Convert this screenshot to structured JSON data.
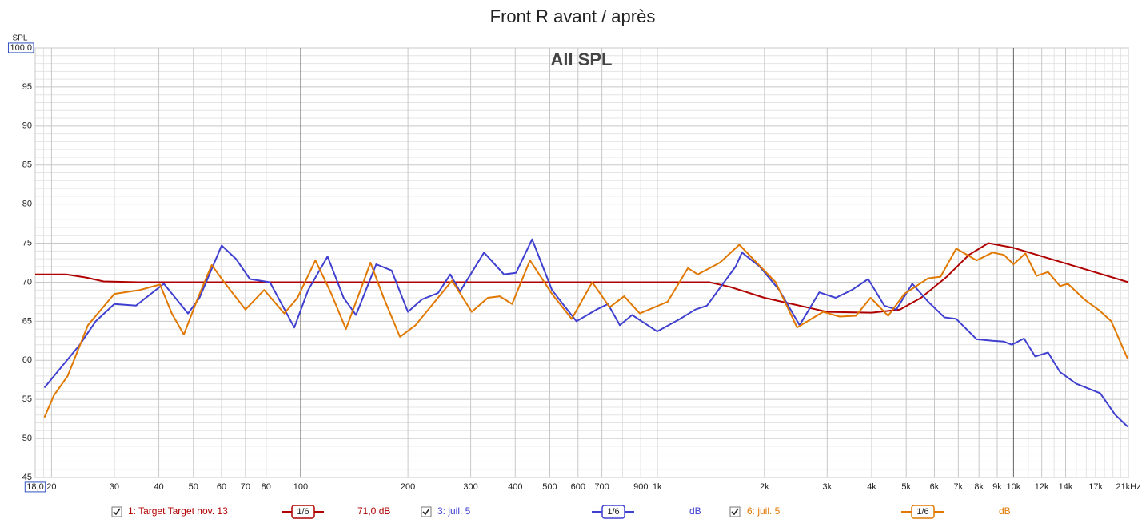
{
  "chart_data": {
    "type": "line",
    "title": "Front R avant / après",
    "annotation": "All SPL",
    "y_label": "SPL",
    "log_x": true,
    "grid": true,
    "xlim": [
      18,
      21000
    ],
    "ylim": [
      45,
      100
    ],
    "xticks": [
      {
        "value": 18,
        "label": "18,0"
      },
      20,
      30,
      40,
      50,
      60,
      70,
      80,
      100,
      200,
      300,
      400,
      500,
      600,
      700,
      900,
      {
        "value": 1000,
        "label": "1k"
      },
      {
        "value": 2000,
        "label": "2k"
      },
      {
        "value": 3000,
        "label": "3k"
      },
      {
        "value": 4000,
        "label": "4k"
      },
      {
        "value": 5000,
        "label": "5k"
      },
      {
        "value": 6000,
        "label": "6k"
      },
      {
        "value": 7000,
        "label": "7k"
      },
      {
        "value": 8000,
        "label": "8k"
      },
      {
        "value": 9000,
        "label": "9k"
      },
      {
        "value": 10000,
        "label": "10k"
      },
      {
        "value": 12000,
        "label": "12k"
      },
      {
        "value": 14000,
        "label": "14k"
      },
      {
        "value": 17000,
        "label": "17k"
      },
      {
        "value": 21000,
        "label": "21kHz"
      }
    ],
    "x_minor_grid": [
      19,
      800,
      11000,
      13000,
      15000,
      16000,
      18000,
      19000,
      20000
    ],
    "yticks": [
      45,
      50,
      55,
      60,
      65,
      70,
      75,
      80,
      85,
      90,
      95,
      {
        "value": 100,
        "label": "100,0"
      }
    ],
    "y_minor_grid": [
      46,
      47,
      48,
      49,
      51,
      52,
      53,
      54,
      56,
      57,
      58,
      59,
      61,
      62,
      63,
      64,
      66,
      67,
      68,
      69,
      71,
      72,
      73,
      74,
      76,
      77,
      78,
      79,
      81,
      82,
      83,
      84,
      86,
      87,
      88,
      89,
      91,
      92,
      93,
      94,
      96,
      97,
      98,
      99
    ],
    "series": [
      {
        "name": "1: Target Target nov. 13",
        "color": "#b00000",
        "smoothing_label": "1/6",
        "offset_label": "71,0 dB",
        "x": [
          18,
          22,
          25,
          28,
          35,
          100,
          1000,
          1400,
          1600,
          2000,
          3000,
          4000,
          4800,
          5500,
          6500,
          7500,
          8500,
          10000,
          15000,
          21000
        ],
        "values": [
          71,
          71,
          70.6,
          70.1,
          70,
          70,
          70,
          70,
          69.4,
          68,
          66.2,
          66.1,
          66.5,
          68,
          70.7,
          73.5,
          75,
          74.4,
          72,
          70
        ]
      },
      {
        "name": "3: juil. 5",
        "color": "#4040d0",
        "smoothing_label": "1/6",
        "offset_label": "dB",
        "x": [
          19.1,
          24,
          26.6,
          30,
          34.5,
          41.3,
          48.3,
          52,
          60,
          65.8,
          72,
          82,
          96,
          105,
          119,
          132,
          143,
          163,
          180,
          200,
          219,
          243,
          263,
          280,
          327,
          372,
          402,
          446,
          507,
          542,
          594,
          676,
          728,
          786,
          851,
          1000,
          1160,
          1280,
          1380,
          1660,
          1730,
          1940,
          2200,
          2510,
          2850,
          3170,
          3520,
          3910,
          4340,
          4690,
          5200,
          5760,
          6400,
          6910,
          7880,
          8730,
          9400,
          9890,
          10700,
          11500,
          12500,
          13500,
          15000,
          17500,
          19300,
          20900
        ],
        "values": [
          56.5,
          62,
          65,
          67.2,
          67,
          69.8,
          66,
          68,
          74.7,
          73,
          70.4,
          70,
          64.2,
          69,
          73.3,
          68,
          65.8,
          72.3,
          71.5,
          66.2,
          67.8,
          68.6,
          71,
          68.8,
          73.8,
          71,
          71.2,
          75.5,
          69,
          67.3,
          65,
          66.5,
          67.2,
          64.5,
          65.8,
          63.7,
          65.3,
          66.5,
          67,
          72,
          73.8,
          72,
          69,
          64.5,
          68.7,
          68,
          69,
          70.4,
          67,
          66.5,
          69.8,
          67.5,
          65.5,
          65.3,
          62.7,
          62.5,
          62.4,
          62,
          62.8,
          60.5,
          61,
          58.5,
          57,
          55.8,
          53,
          51.5
        ]
      },
      {
        "name": "6: juil. 5",
        "color": "#e07800",
        "smoothing_label": "1/6",
        "offset_label": "dB",
        "x": [
          19.1,
          20.3,
          22.2,
          25.3,
          30,
          35.4,
          40.3,
          43.5,
          47,
          51.5,
          56.3,
          61,
          70,
          79,
          90,
          98,
          110,
          122,
          134,
          150,
          157,
          171,
          190,
          210,
          233,
          266,
          302,
          335,
          362,
          392,
          440,
          507,
          576,
          658,
          736,
          808,
          894,
          1070,
          1220,
          1300,
          1500,
          1700,
          2150,
          2470,
          2920,
          3250,
          3610,
          3970,
          4450,
          4940,
          5760,
          6240,
          6910,
          7880,
          8730,
          9400,
          10000,
          10800,
          11600,
          12500,
          13500,
          14200,
          15800,
          17500,
          18800,
          20900
        ],
        "values": [
          52.7,
          55.5,
          58,
          64.5,
          68.5,
          69,
          69.7,
          66,
          63.3,
          68,
          72.2,
          70,
          66.5,
          69,
          66,
          68,
          72.8,
          68.5,
          64,
          70,
          72.5,
          68,
          63,
          64.5,
          67,
          70.2,
          66.2,
          68,
          68.2,
          67.2,
          72.8,
          68.5,
          65.3,
          70,
          66.8,
          68.2,
          66,
          67.5,
          71.8,
          71,
          72.5,
          74.8,
          70,
          64.2,
          66.2,
          65.6,
          65.7,
          68,
          65.7,
          68.5,
          70.5,
          70.7,
          74.3,
          72.8,
          73.8,
          73.5,
          72.3,
          73.7,
          70.8,
          71.3,
          69.5,
          69.8,
          67.8,
          66.3,
          65,
          60.2
        ]
      }
    ]
  }
}
